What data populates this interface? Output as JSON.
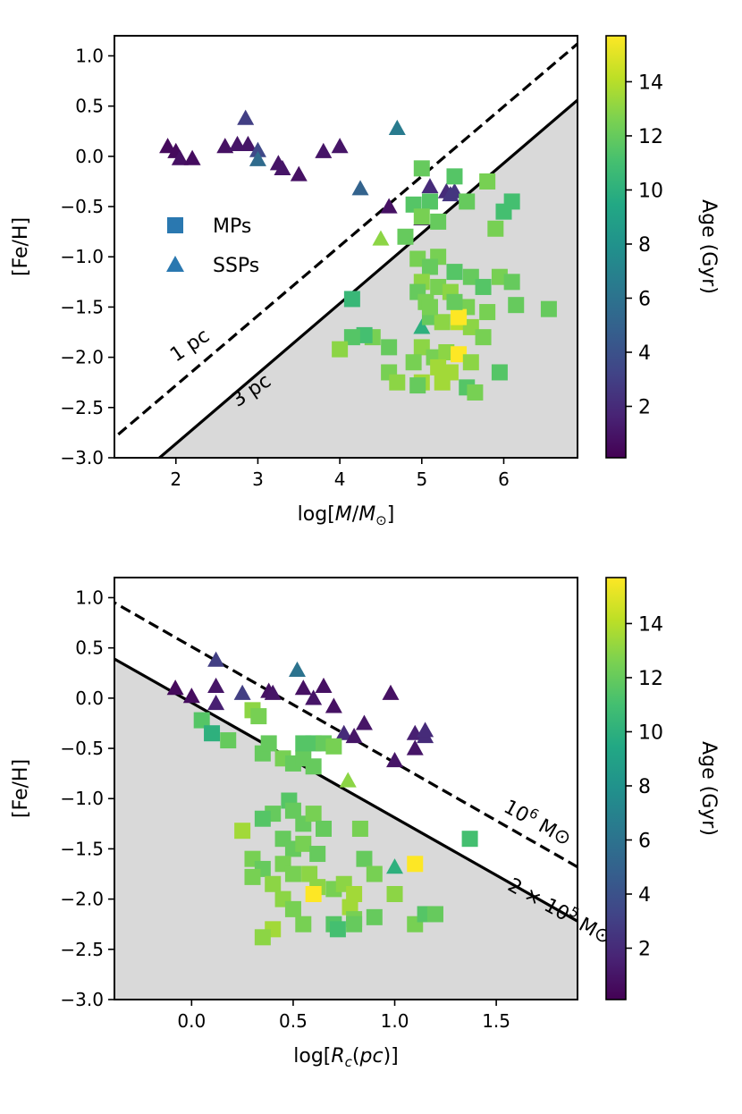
{
  "chart_data": [
    {
      "type": "scatter",
      "panel": "top",
      "xlabel": "log[M/M⊙]",
      "ylabel": "[Fe/H]",
      "xlim": [
        1.25,
        6.9
      ],
      "ylim": [
        -3.0,
        1.2
      ],
      "xticks": [
        2,
        3,
        4,
        5,
        6
      ],
      "yticks": [
        1.0,
        0.5,
        0.0,
        -0.5,
        -1.0,
        -1.5,
        -2.0,
        -2.5,
        -3.0
      ],
      "xtick_labels": [
        "2",
        "3",
        "4",
        "5",
        "6"
      ],
      "ytick_labels": [
        "1.0",
        "0.5",
        "0.0",
        "−0.5",
        "−1.0",
        "−1.5",
        "−2.0",
        "−2.5",
        "−3.0"
      ],
      "legend": {
        "position": "left",
        "entries": [
          {
            "label": "MPs",
            "marker": "square"
          },
          {
            "label": "SSPs",
            "marker": "triangle"
          }
        ]
      },
      "lines": [
        {
          "name": "1 pc",
          "style": "dashed",
          "points": [
            [
              1.25,
              -2.8
            ],
            [
              6.9,
              1.12
            ]
          ],
          "label": "1 pc",
          "label_at": [
            2.0,
            -2.05
          ],
          "label_angle": -34
        },
        {
          "name": "3 pc",
          "style": "solid",
          "points": [
            [
              1.8,
              -3.0
            ],
            [
              6.9,
              0.56
            ]
          ],
          "label": "3 pc",
          "label_at": [
            2.75,
            -2.5
          ],
          "label_angle": -34
        }
      ],
      "shaded_region": "below-solid-line",
      "colorbar": {
        "label": "Age (Gyr)",
        "min": 0.1,
        "max": 15.7,
        "ticks": [
          2,
          4,
          6,
          8,
          10,
          12,
          14
        ]
      },
      "series": [
        {
          "name": "SSPs",
          "marker": "triangle",
          "points": [
            [
              1.9,
              0.1,
              0.5
            ],
            [
              2.0,
              0.05,
              0.5
            ],
            [
              2.05,
              -0.02,
              0.8
            ],
            [
              2.2,
              -0.02,
              0.6
            ],
            [
              2.6,
              0.1,
              0.8
            ],
            [
              2.75,
              0.12,
              1.0
            ],
            [
              2.85,
              0.38,
              3.0
            ],
            [
              2.88,
              0.12,
              1.0
            ],
            [
              3.0,
              0.06,
              3.5
            ],
            [
              3.0,
              -0.03,
              5.5
            ],
            [
              3.25,
              -0.07,
              1.0
            ],
            [
              3.3,
              -0.12,
              1.0
            ],
            [
              3.5,
              -0.18,
              0.8
            ],
            [
              3.8,
              0.05,
              1.0
            ],
            [
              4.0,
              0.1,
              1.0
            ],
            [
              4.25,
              -0.32,
              5.0
            ],
            [
              4.6,
              -0.5,
              0.8
            ],
            [
              4.7,
              0.28,
              6.5
            ],
            [
              5.0,
              -0.62,
              1.0
            ],
            [
              5.1,
              -0.3,
              2.0
            ],
            [
              5.3,
              -0.35,
              2.0
            ],
            [
              5.35,
              -0.38,
              2.5
            ],
            [
              5.4,
              -0.35,
              2.5
            ],
            [
              4.5,
              -0.82,
              13.0
            ],
            [
              5.0,
              -1.7,
              10.0
            ]
          ]
        },
        {
          "name": "MPs",
          "marker": "square",
          "points": [
            [
              5.0,
              -0.12,
              12.0
            ],
            [
              5.4,
              -0.2,
              11.5
            ],
            [
              5.8,
              -0.25,
              12.5
            ],
            [
              4.9,
              -0.48,
              11.5
            ],
            [
              5.1,
              -0.45,
              11.5
            ],
            [
              5.55,
              -0.45,
              12.0
            ],
            [
              6.1,
              -0.45,
              11.0
            ],
            [
              6.0,
              -0.55,
              11.0
            ],
            [
              5.0,
              -0.6,
              12.5
            ],
            [
              5.2,
              -0.65,
              12.0
            ],
            [
              4.8,
              -0.8,
              12.0
            ],
            [
              5.9,
              -0.72,
              12.5
            ],
            [
              4.95,
              -1.02,
              12.5
            ],
            [
              5.2,
              -1.0,
              12.5
            ],
            [
              5.1,
              -1.1,
              12.0
            ],
            [
              5.4,
              -1.15,
              11.5
            ],
            [
              5.6,
              -1.2,
              12.0
            ],
            [
              5.75,
              -1.3,
              11.5
            ],
            [
              5.95,
              -1.2,
              12.5
            ],
            [
              6.1,
              -1.25,
              12.0
            ],
            [
              5.0,
              -1.25,
              13.0
            ],
            [
              5.2,
              -1.3,
              12.5
            ],
            [
              4.95,
              -1.35,
              12.0
            ],
            [
              5.05,
              -1.45,
              12.5
            ],
            [
              5.35,
              -1.35,
              13.0
            ],
            [
              5.55,
              -1.5,
              12.5
            ],
            [
              5.1,
              -1.6,
              12.0
            ],
            [
              5.25,
              -1.65,
              13.0
            ],
            [
              5.45,
              -1.65,
              14.0
            ],
            [
              5.6,
              -1.7,
              13.0
            ],
            [
              5.75,
              -1.8,
              12.5
            ],
            [
              5.45,
              -1.6,
              15.7
            ],
            [
              6.15,
              -1.48,
              12.0
            ],
            [
              6.55,
              -1.52,
              12.0
            ],
            [
              5.0,
              -1.9,
              13.0
            ],
            [
              5.15,
              -2.0,
              12.5
            ],
            [
              5.3,
              -1.95,
              13.0
            ],
            [
              5.45,
              -1.97,
              15.7
            ],
            [
              5.6,
              -2.05,
              13.0
            ],
            [
              5.0,
              -2.25,
              13.5
            ],
            [
              5.2,
              -2.1,
              13.5
            ],
            [
              5.35,
              -2.15,
              13.5
            ],
            [
              4.9,
              -2.05,
              12.5
            ],
            [
              4.6,
              -1.9,
              12.0
            ],
            [
              4.4,
              -1.8,
              12.5
            ],
            [
              4.3,
              -1.78,
              11.0
            ],
            [
              4.15,
              -1.8,
              11.5
            ],
            [
              4.0,
              -1.92,
              13.0
            ],
            [
              4.6,
              -2.15,
              12.5
            ],
            [
              4.7,
              -2.25,
              13.0
            ],
            [
              4.95,
              -2.28,
              12.0
            ],
            [
              5.25,
              -2.25,
              13.5
            ],
            [
              5.55,
              -2.3,
              11.5
            ],
            [
              5.65,
              -2.35,
              12.5
            ],
            [
              5.95,
              -2.15,
              11.5
            ],
            [
              4.15,
              -1.42,
              10.5
            ],
            [
              5.4,
              -1.45,
              12.0
            ],
            [
              5.8,
              -1.55,
              12.5
            ],
            [
              5.1,
              -1.5,
              12.5
            ]
          ]
        }
      ]
    },
    {
      "type": "scatter",
      "panel": "bottom",
      "xlabel": "log[Rc(pc)]",
      "ylabel": "[Fe/H]",
      "xlim": [
        -0.38,
        1.9
      ],
      "ylim": [
        -3.0,
        1.2
      ],
      "xticks": [
        0.0,
        0.5,
        1.0,
        1.5
      ],
      "yticks": [
        1.0,
        0.5,
        0.0,
        -0.5,
        -1.0,
        -1.5,
        -2.0,
        -2.5,
        -3.0
      ],
      "xtick_labels": [
        "0.0",
        "0.5",
        "1.0",
        "1.5"
      ],
      "ytick_labels": [
        "1.0",
        "0.5",
        "0.0",
        "−0.5",
        "−1.0",
        "−1.5",
        "−2.0",
        "−2.5",
        "−3.0"
      ],
      "lines": [
        {
          "name": "10^6 M⊙",
          "style": "dashed",
          "points": [
            [
              -0.38,
              0.95
            ],
            [
              1.9,
              -1.68
            ]
          ],
          "label": "10",
          "label_sup": "6",
          "label_suffix": " M⊙",
          "label_at": [
            1.53,
            -1.12
          ],
          "label_angle": 29
        },
        {
          "name": "2×10^5 M⊙",
          "style": "solid",
          "points": [
            [
              -0.38,
              0.39
            ],
            [
              1.9,
              -2.22
            ]
          ],
          "label": "2 × 10",
          "label_sup": "5",
          "label_suffix": " M⊙",
          "label_at": [
            1.55,
            -1.9
          ],
          "label_angle": 29
        }
      ],
      "shaded_region": "below-solid-line",
      "colorbar": {
        "label": "Age (Gyr)",
        "min": 0.1,
        "max": 15.7,
        "ticks": [
          2,
          4,
          6,
          8,
          10,
          12,
          14
        ]
      },
      "series": [
        {
          "name": "SSPs",
          "marker": "triangle",
          "points": [
            [
              -0.08,
              0.1,
              0.5
            ],
            [
              0.0,
              0.02,
              0.6
            ],
            [
              0.12,
              0.38,
              3.0
            ],
            [
              0.12,
              0.12,
              1.0
            ],
            [
              0.12,
              -0.05,
              1.5
            ],
            [
              0.25,
              0.05,
              3.0
            ],
            [
              0.38,
              0.07,
              0.8
            ],
            [
              0.4,
              0.05,
              1.0
            ],
            [
              0.52,
              0.28,
              6.0
            ],
            [
              0.55,
              0.1,
              0.8
            ],
            [
              0.6,
              0.0,
              1.0
            ],
            [
              0.65,
              0.12,
              0.8
            ],
            [
              0.7,
              -0.08,
              0.8
            ],
            [
              0.75,
              -0.35,
              2.0
            ],
            [
              0.8,
              -0.38,
              1.0
            ],
            [
              0.85,
              -0.25,
              1.0
            ],
            [
              0.98,
              0.05,
              0.8
            ],
            [
              1.0,
              -0.62,
              1.0
            ],
            [
              1.1,
              -0.5,
              1.0
            ],
            [
              1.1,
              -0.35,
              1.5
            ],
            [
              1.15,
              -0.38,
              2.0
            ],
            [
              1.15,
              -0.32,
              2.0
            ],
            [
              0.77,
              -0.82,
              13.0
            ],
            [
              1.0,
              -1.68,
              10.0
            ]
          ]
        },
        {
          "name": "MPs",
          "marker": "square",
          "points": [
            [
              0.05,
              -0.22,
              11.5
            ],
            [
              0.1,
              -0.35,
              10.0
            ],
            [
              0.18,
              -0.42,
              12.0
            ],
            [
              0.3,
              -0.12,
              13.0
            ],
            [
              0.33,
              -0.18,
              12.5
            ],
            [
              0.35,
              -0.55,
              12.0
            ],
            [
              0.38,
              -0.45,
              12.0
            ],
            [
              0.45,
              -0.6,
              12.5
            ],
            [
              0.5,
              -0.65,
              12.0
            ],
            [
              0.55,
              -0.6,
              12.0
            ],
            [
              0.6,
              -0.68,
              12.0
            ],
            [
              0.55,
              -0.45,
              11.5
            ],
            [
              0.6,
              -0.45,
              11.5
            ],
            [
              0.65,
              -0.45,
              12.0
            ],
            [
              0.7,
              -0.48,
              12.5
            ],
            [
              0.48,
              -1.02,
              11.5
            ],
            [
              0.5,
              -1.12,
              12.0
            ],
            [
              0.55,
              -1.25,
              12.0
            ],
            [
              0.6,
              -1.15,
              12.5
            ],
            [
              0.65,
              -1.3,
              12.0
            ],
            [
              0.4,
              -1.15,
              12.0
            ],
            [
              0.25,
              -1.32,
              13.5
            ],
            [
              0.35,
              -1.2,
              11.5
            ],
            [
              0.45,
              -1.4,
              12.0
            ],
            [
              0.5,
              -1.5,
              12.0
            ],
            [
              0.55,
              -1.45,
              12.5
            ],
            [
              0.62,
              -1.55,
              12.0
            ],
            [
              0.3,
              -1.6,
              12.5
            ],
            [
              0.35,
              -1.7,
              12.0
            ],
            [
              0.4,
              -1.85,
              13.0
            ],
            [
              0.45,
              -1.65,
              12.5
            ],
            [
              0.5,
              -1.75,
              12.5
            ],
            [
              0.58,
              -1.75,
              13.0
            ],
            [
              0.3,
              -1.78,
              12.5
            ],
            [
              0.62,
              -1.88,
              13.0
            ],
            [
              0.6,
              -1.95,
              15.7
            ],
            [
              0.7,
              -1.9,
              12.5
            ],
            [
              0.75,
              -1.85,
              13.0
            ],
            [
              0.8,
              -1.95,
              13.5
            ],
            [
              0.85,
              -1.6,
              12.0
            ],
            [
              0.9,
              -1.75,
              12.5
            ],
            [
              1.0,
              -1.95,
              13.0
            ],
            [
              1.1,
              -1.65,
              15.7
            ],
            [
              0.45,
              -2.0,
              13.0
            ],
            [
              0.5,
              -2.1,
              12.5
            ],
            [
              0.55,
              -2.25,
              12.5
            ],
            [
              0.4,
              -2.3,
              13.5
            ],
            [
              0.35,
              -2.38,
              13.0
            ],
            [
              0.78,
              -2.08,
              13.5
            ],
            [
              0.8,
              -2.2,
              12.5
            ],
            [
              0.9,
              -2.18,
              12.0
            ],
            [
              0.7,
              -2.25,
              11.5
            ],
            [
              0.72,
              -2.3,
              11.0
            ],
            [
              0.8,
              -2.25,
              12.0
            ],
            [
              1.1,
              -2.25,
              12.5
            ],
            [
              1.15,
              -2.15,
              11.5
            ],
            [
              1.2,
              -2.15,
              12.0
            ],
            [
              1.37,
              -1.4,
              11.0
            ],
            [
              0.83,
              -1.3,
              12.5
            ]
          ]
        }
      ]
    }
  ]
}
